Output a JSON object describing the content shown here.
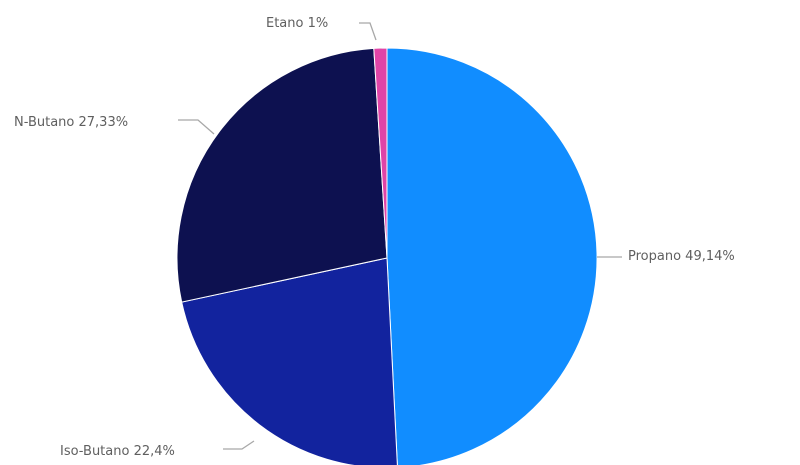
{
  "chart_data": {
    "type": "pie",
    "title": "",
    "slices": [
      {
        "name": "Propano",
        "value": 49.14,
        "label": "Propano 49,14%",
        "color": "#118dff"
      },
      {
        "name": "Iso-Butano",
        "value": 22.4,
        "label": "Iso-Butano 22,4%",
        "color": "#12239e"
      },
      {
        "name": "N-Butano",
        "value": 27.33,
        "label": "N-Butano 27,33%",
        "color": "#0d1150"
      },
      {
        "name": "Etano",
        "value": 1,
        "label": "Etano 1%",
        "color": "#e044a7"
      }
    ],
    "legend": "none",
    "data_labels": "outside"
  }
}
